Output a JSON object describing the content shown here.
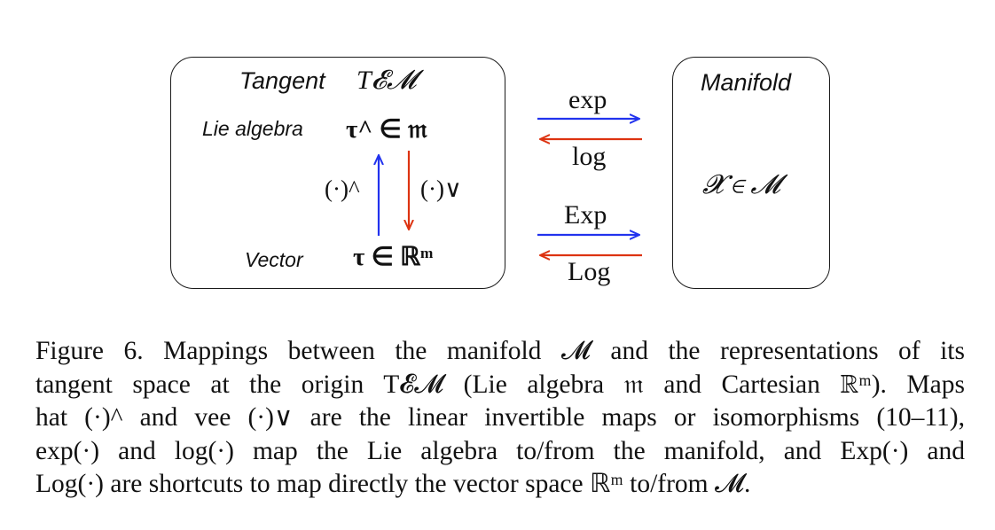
{
  "tangent_box": {
    "title": "Tangent",
    "title_math": "T𝓔𝓜",
    "lie_algebra_label": "Lie algebra",
    "lie_algebra_math": "τ^ ∈ 𝔪",
    "vector_label": "Vector",
    "vector_math": "τ ∈ ℝᵐ",
    "hat_label": "(·)^",
    "vee_label": "(·)∨"
  },
  "manifold_box": {
    "title": "Manifold",
    "math": "𝓧 ∈ 𝓜"
  },
  "maps": {
    "exp": "exp",
    "log": "log",
    "Exp": "Exp",
    "Log": "Log"
  },
  "colors": {
    "forward_arrow": "#2233ee",
    "backward_arrow": "#dd3311"
  },
  "caption": {
    "lines": [
      "Figure 6.  Mappings between the manifold 𝓜 and the representations of its",
      "tangent space at the origin T𝓔𝓜 (Lie algebra 𝔪 and Cartesian ℝᵐ). Maps",
      "hat (·)^ and vee (·)∨ are the linear invertible maps or isomorphisms (10–11),",
      "exp(·) and log(·) map the Lie algebra to/from the manifold, and Exp(·) and",
      "Log(·) are shortcuts to map directly the vector space ℝᵐ to/from 𝓜."
    ]
  }
}
